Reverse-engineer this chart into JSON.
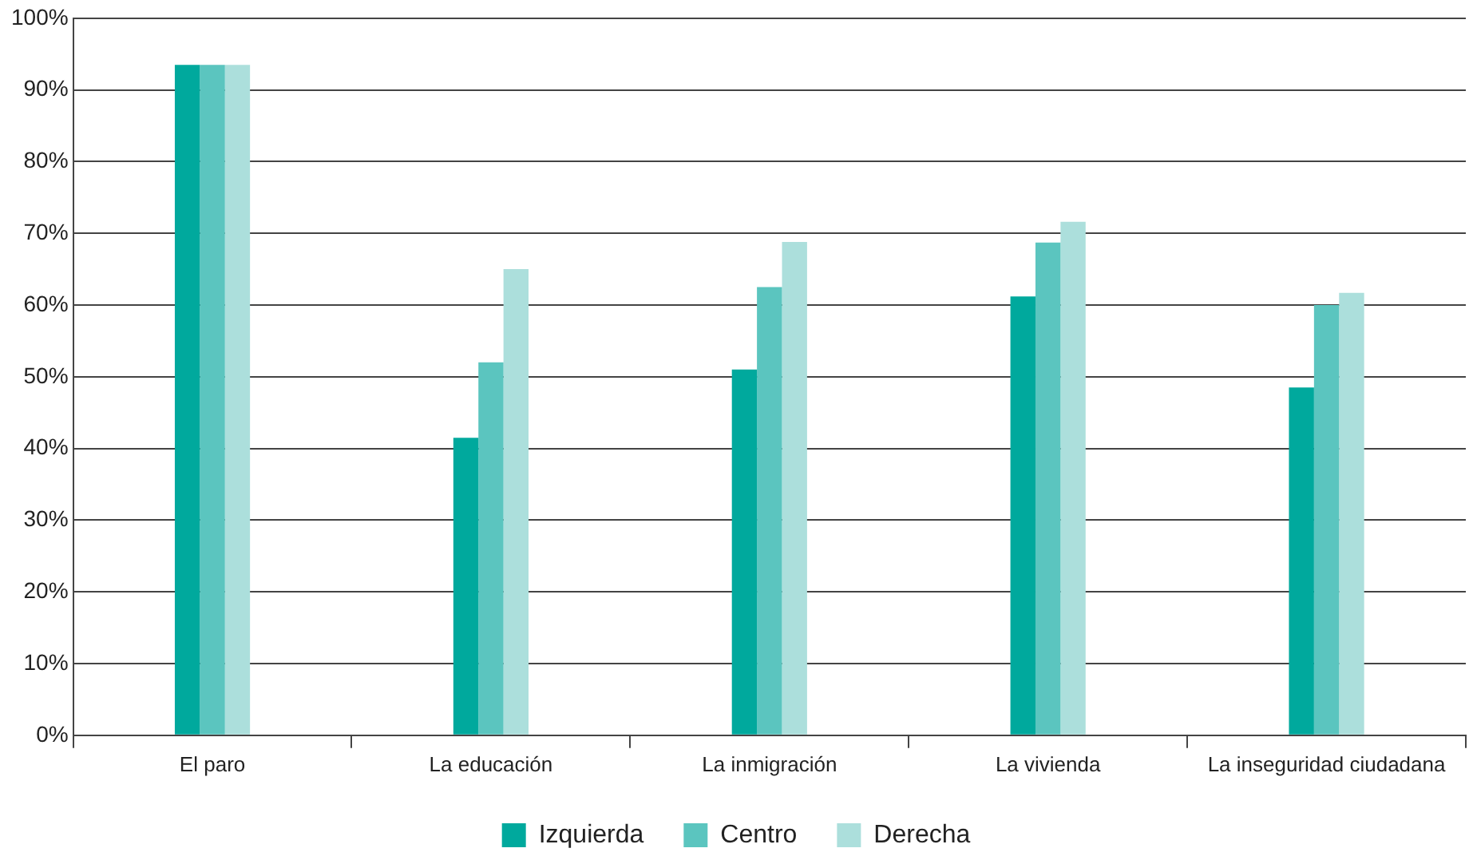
{
  "chart_data": {
    "type": "bar",
    "categories": [
      "El paro",
      "La educación",
      "La inmigración",
      "La vivienda",
      "La inseguridad ciudadana"
    ],
    "series": [
      {
        "name": "Izquierda",
        "color": "#00a99d",
        "values": [
          93.5,
          41.5,
          51,
          61.2,
          48.5
        ]
      },
      {
        "name": "Centro",
        "color": "#5bc5bf",
        "values": [
          93.5,
          52,
          62.5,
          68.7,
          60
        ]
      },
      {
        "name": "Derecha",
        "color": "#acdfdc",
        "values": [
          93.5,
          65,
          68.8,
          71.6,
          61.7
        ]
      }
    ],
    "ylim": [
      0,
      100
    ],
    "yticks": [
      {
        "value": 0,
        "label": "0%"
      },
      {
        "value": 10,
        "label": "10%"
      },
      {
        "value": 20,
        "label": "20%"
      },
      {
        "value": 30,
        "label": "30%"
      },
      {
        "value": 40,
        "label": "40%"
      },
      {
        "value": 50,
        "label": "50%"
      },
      {
        "value": 60,
        "label": "60%"
      },
      {
        "value": 70,
        "label": "70%"
      },
      {
        "value": 80,
        "label": "80%"
      },
      {
        "value": 90,
        "label": "90%"
      },
      {
        "value": 100,
        "label": "100%"
      }
    ],
    "grid": "y",
    "legend": "bottom"
  }
}
